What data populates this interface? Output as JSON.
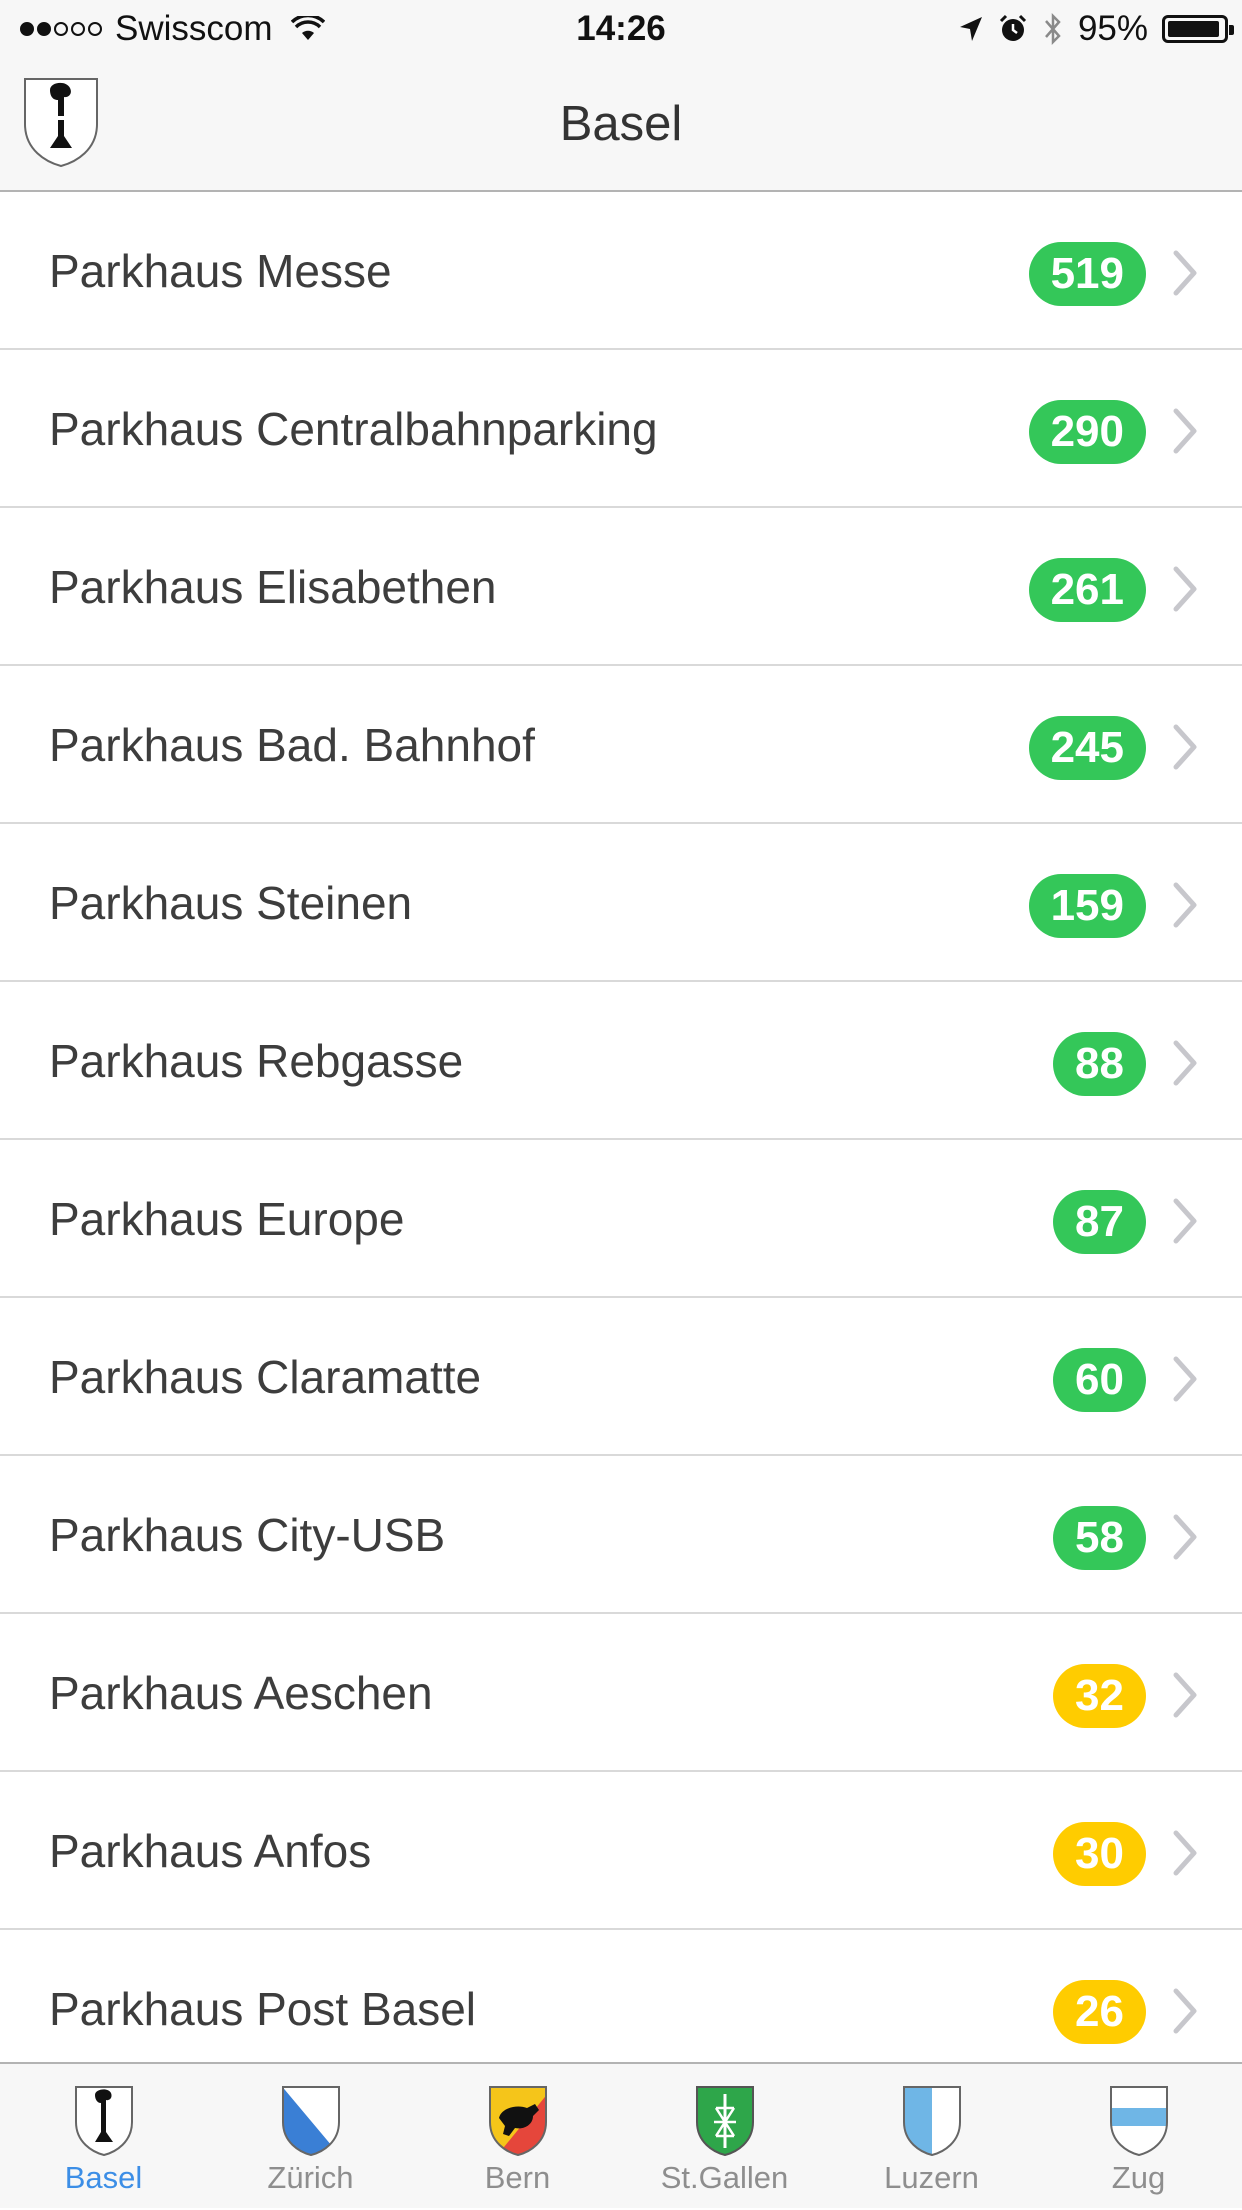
{
  "status_bar": {
    "carrier": "Swisscom",
    "time": "14:26",
    "battery": "95%",
    "battery_level": 0.95,
    "signal_bars": 2
  },
  "nav": {
    "title": "Basel",
    "crest_icon": "basel-crest-icon"
  },
  "colors": {
    "badge_green": "#34c759",
    "badge_yellow": "#ffcc00",
    "tab_active": "#3c8ee6",
    "tab_inactive": "#8e8e8e"
  },
  "parkings": [
    {
      "name": "Parkhaus Messe",
      "free": "519",
      "status": "green"
    },
    {
      "name": "Parkhaus Centralbahnparking",
      "free": "290",
      "status": "green"
    },
    {
      "name": "Parkhaus Elisabethen",
      "free": "261",
      "status": "green"
    },
    {
      "name": "Parkhaus Bad. Bahnhof",
      "free": "245",
      "status": "green"
    },
    {
      "name": "Parkhaus Steinen",
      "free": "159",
      "status": "green"
    },
    {
      "name": "Parkhaus Rebgasse",
      "free": "88",
      "status": "green"
    },
    {
      "name": "Parkhaus Europe",
      "free": "87",
      "status": "green"
    },
    {
      "name": "Parkhaus Claramatte",
      "free": "60",
      "status": "green"
    },
    {
      "name": "Parkhaus City-USB",
      "free": "58",
      "status": "green"
    },
    {
      "name": "Parkhaus Aeschen",
      "free": "32",
      "status": "yellow"
    },
    {
      "name": "Parkhaus Anfos",
      "free": "30",
      "status": "yellow"
    },
    {
      "name": "Parkhaus Post Basel",
      "free": "26",
      "status": "yellow"
    }
  ],
  "tabs": [
    {
      "label": "Basel",
      "icon": "basel-crest-icon",
      "active": true
    },
    {
      "label": "Zürich",
      "icon": "zurich-crest-icon",
      "active": false
    },
    {
      "label": "Bern",
      "icon": "bern-crest-icon",
      "active": false
    },
    {
      "label": "St.Gallen",
      "icon": "stgallen-crest-icon",
      "active": false
    },
    {
      "label": "Luzern",
      "icon": "luzern-crest-icon",
      "active": false
    },
    {
      "label": "Zug",
      "icon": "zug-crest-icon",
      "active": false
    }
  ]
}
